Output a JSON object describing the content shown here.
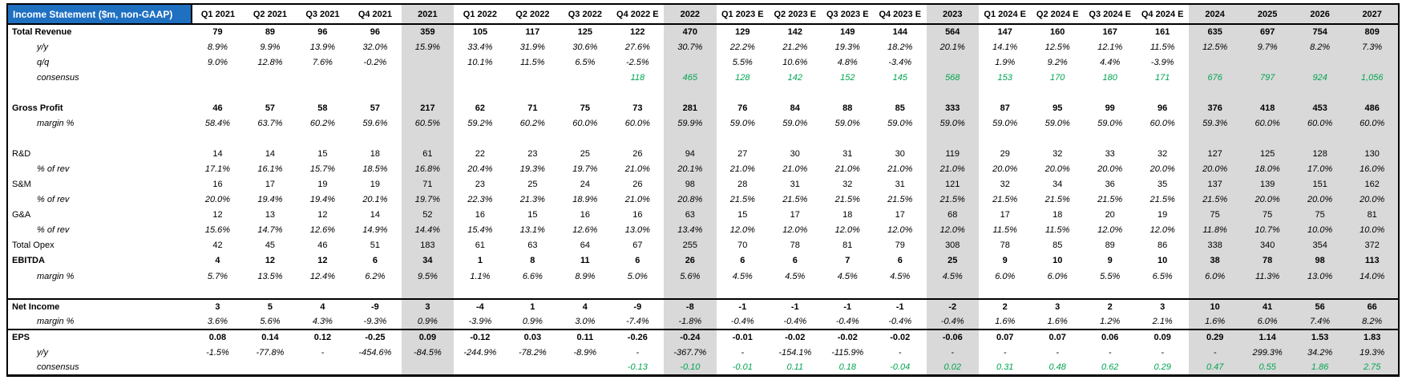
{
  "title": "Income Statement ($m, non-GAAP)",
  "colors": {
    "header_blue": "#1F70C1",
    "annual_bg": "#D9D9D9",
    "consensus_green": "#00A550",
    "border": "#000000"
  },
  "columns": [
    {
      "label": "Q1 2021",
      "annual": false
    },
    {
      "label": "Q2 2021",
      "annual": false
    },
    {
      "label": "Q3 2021",
      "annual": false
    },
    {
      "label": "Q4 2021",
      "annual": false
    },
    {
      "label": "2021",
      "annual": true
    },
    {
      "label": "Q1 2022",
      "annual": false
    },
    {
      "label": "Q2 2022",
      "annual": false
    },
    {
      "label": "Q3 2022",
      "annual": false
    },
    {
      "label": "Q4 2022 E",
      "annual": false
    },
    {
      "label": "2022",
      "annual": true
    },
    {
      "label": "Q1 2023 E",
      "annual": false
    },
    {
      "label": "Q2 2023 E",
      "annual": false
    },
    {
      "label": "Q3 2023 E",
      "annual": false
    },
    {
      "label": "Q4 2023 E",
      "annual": false
    },
    {
      "label": "2023",
      "annual": true
    },
    {
      "label": "Q1 2024 E",
      "annual": false
    },
    {
      "label": "Q2 2024 E",
      "annual": false
    },
    {
      "label": "Q3 2024 E",
      "annual": false
    },
    {
      "label": "Q4 2024 E",
      "annual": false
    },
    {
      "label": "2024",
      "annual": true
    },
    {
      "label": "2025",
      "annual": true
    },
    {
      "label": "2026",
      "annual": true
    },
    {
      "label": "2027",
      "annual": true
    }
  ],
  "rows": [
    {
      "name": "total-revenue",
      "label": "Total Revenue",
      "cls": "bold",
      "values": [
        "79",
        "89",
        "96",
        "96",
        "359",
        "105",
        "117",
        "125",
        "122",
        "470",
        "129",
        "142",
        "149",
        "144",
        "564",
        "147",
        "160",
        "167",
        "161",
        "635",
        "697",
        "754",
        "809"
      ]
    },
    {
      "name": "revenue-yoy",
      "label": "y/y",
      "cls": "italic",
      "indent": true,
      "values": [
        "8.9%",
        "9.9%",
        "13.9%",
        "32.0%",
        "15.9%",
        "33.4%",
        "31.9%",
        "30.6%",
        "27.6%",
        "30.7%",
        "22.2%",
        "21.2%",
        "19.3%",
        "18.2%",
        "20.1%",
        "14.1%",
        "12.5%",
        "12.1%",
        "11.5%",
        "12.5%",
        "9.7%",
        "8.2%",
        "7.3%"
      ]
    },
    {
      "name": "revenue-qoq",
      "label": "q/q",
      "cls": "italic",
      "indent": true,
      "values": [
        "9.0%",
        "12.8%",
        "7.6%",
        "-0.2%",
        "",
        "10.1%",
        "11.5%",
        "6.5%",
        "-2.5%",
        "",
        "5.5%",
        "10.6%",
        "4.8%",
        "-3.4%",
        "",
        "1.9%",
        "9.2%",
        "4.4%",
        "-3.9%",
        "",
        "",
        "",
        ""
      ]
    },
    {
      "name": "revenue-consensus",
      "label": "consensus",
      "cls": "italic",
      "indent": true,
      "green": true,
      "values": [
        "",
        "",
        "",
        "",
        "",
        "",
        "",
        "",
        "118",
        "465",
        "128",
        "142",
        "152",
        "145",
        "568",
        "153",
        "170",
        "180",
        "171",
        "676",
        "797",
        "924",
        "1,056"
      ]
    },
    {
      "name": "spacer-1",
      "label": "",
      "cls": "blank",
      "values": [
        "",
        "",
        "",
        "",
        "",
        "",
        "",
        "",
        "",
        "",
        "",
        "",
        "",
        "",
        "",
        "",
        "",
        "",
        "",
        "",
        "",
        "",
        ""
      ]
    },
    {
      "name": "gross-profit",
      "label": "Gross Profit",
      "cls": "bold",
      "values": [
        "46",
        "57",
        "58",
        "57",
        "217",
        "62",
        "71",
        "75",
        "73",
        "281",
        "76",
        "84",
        "88",
        "85",
        "333",
        "87",
        "95",
        "99",
        "96",
        "376",
        "418",
        "453",
        "486"
      ]
    },
    {
      "name": "gross-margin",
      "label": "margin %",
      "cls": "italic",
      "indent": true,
      "values": [
        "58.4%",
        "63.7%",
        "60.2%",
        "59.6%",
        "60.5%",
        "59.2%",
        "60.2%",
        "60.0%",
        "60.0%",
        "59.9%",
        "59.0%",
        "59.0%",
        "59.0%",
        "59.0%",
        "59.0%",
        "59.0%",
        "59.0%",
        "59.0%",
        "60.0%",
        "59.3%",
        "60.0%",
        "60.0%",
        "60.0%"
      ]
    },
    {
      "name": "spacer-2",
      "label": "",
      "cls": "blank",
      "values": [
        "",
        "",
        "",
        "",
        "",
        "",
        "",
        "",
        "",
        "",
        "",
        "",
        "",
        "",
        "",
        "",
        "",
        "",
        "",
        "",
        "",
        "",
        ""
      ]
    },
    {
      "name": "rd",
      "label": "R&D",
      "cls": "normal",
      "values": [
        "14",
        "14",
        "15",
        "18",
        "61",
        "22",
        "23",
        "25",
        "26",
        "94",
        "27",
        "30",
        "31",
        "30",
        "119",
        "29",
        "32",
        "33",
        "32",
        "127",
        "125",
        "128",
        "130"
      ]
    },
    {
      "name": "rd-pct-rev",
      "label": "% of rev",
      "cls": "italic",
      "indent": true,
      "values": [
        "17.1%",
        "16.1%",
        "15.7%",
        "18.5%",
        "16.8%",
        "20.4%",
        "19.3%",
        "19.7%",
        "21.0%",
        "20.1%",
        "21.0%",
        "21.0%",
        "21.0%",
        "21.0%",
        "21.0%",
        "20.0%",
        "20.0%",
        "20.0%",
        "20.0%",
        "20.0%",
        "18.0%",
        "17.0%",
        "16.0%"
      ]
    },
    {
      "name": "sm",
      "label": "S&M",
      "cls": "normal",
      "values": [
        "16",
        "17",
        "19",
        "19",
        "71",
        "23",
        "25",
        "24",
        "26",
        "98",
        "28",
        "31",
        "32",
        "31",
        "121",
        "32",
        "34",
        "36",
        "35",
        "137",
        "139",
        "151",
        "162"
      ]
    },
    {
      "name": "sm-pct-rev",
      "label": "% of rev",
      "cls": "italic",
      "indent": true,
      "values": [
        "20.0%",
        "19.4%",
        "19.4%",
        "20.1%",
        "19.7%",
        "22.3%",
        "21.3%",
        "18.9%",
        "21.0%",
        "20.8%",
        "21.5%",
        "21.5%",
        "21.5%",
        "21.5%",
        "21.5%",
        "21.5%",
        "21.5%",
        "21.5%",
        "21.5%",
        "21.5%",
        "20.0%",
        "20.0%",
        "20.0%"
      ]
    },
    {
      "name": "ga",
      "label": "G&A",
      "cls": "normal",
      "values": [
        "12",
        "13",
        "12",
        "14",
        "52",
        "16",
        "15",
        "16",
        "16",
        "63",
        "15",
        "17",
        "18",
        "17",
        "68",
        "17",
        "18",
        "20",
        "19",
        "75",
        "75",
        "75",
        "81"
      ]
    },
    {
      "name": "ga-pct-rev",
      "label": "% of rev",
      "cls": "italic",
      "indent": true,
      "values": [
        "15.6%",
        "14.7%",
        "12.6%",
        "14.9%",
        "14.4%",
        "15.4%",
        "13.1%",
        "12.6%",
        "13.0%",
        "13.4%",
        "12.0%",
        "12.0%",
        "12.0%",
        "12.0%",
        "12.0%",
        "11.5%",
        "11.5%",
        "12.0%",
        "12.0%",
        "11.8%",
        "10.7%",
        "10.0%",
        "10.0%"
      ]
    },
    {
      "name": "total-opex",
      "label": "Total Opex",
      "cls": "normal",
      "values": [
        "42",
        "45",
        "46",
        "51",
        "183",
        "61",
        "63",
        "64",
        "67",
        "255",
        "70",
        "78",
        "81",
        "79",
        "308",
        "78",
        "85",
        "89",
        "86",
        "338",
        "340",
        "354",
        "372"
      ]
    },
    {
      "name": "ebitda",
      "label": "EBITDA",
      "cls": "bold",
      "values": [
        "4",
        "12",
        "12",
        "6",
        "34",
        "1",
        "8",
        "11",
        "6",
        "26",
        "6",
        "6",
        "7",
        "6",
        "25",
        "9",
        "10",
        "9",
        "10",
        "38",
        "78",
        "98",
        "113"
      ]
    },
    {
      "name": "ebitda-margin",
      "label": "margin %",
      "cls": "italic",
      "indent": true,
      "values": [
        "5.7%",
        "13.5%",
        "12.4%",
        "6.2%",
        "9.5%",
        "1.1%",
        "6.6%",
        "8.9%",
        "5.0%",
        "5.6%",
        "4.5%",
        "4.5%",
        "4.5%",
        "4.5%",
        "4.5%",
        "6.0%",
        "6.0%",
        "5.5%",
        "6.5%",
        "6.0%",
        "11.3%",
        "13.0%",
        "14.0%"
      ]
    },
    {
      "name": "spacer-3",
      "label": "",
      "cls": "blank",
      "values": [
        "",
        "",
        "",
        "",
        "",
        "",
        "",
        "",
        "",
        "",
        "",
        "",
        "",
        "",
        "",
        "",
        "",
        "",
        "",
        "",
        "",
        "",
        ""
      ]
    },
    {
      "name": "net-income",
      "label": "Net Income",
      "cls": "bold",
      "border_top": true,
      "values": [
        "3",
        "5",
        "4",
        "-9",
        "3",
        "-4",
        "1",
        "4",
        "-9",
        "-8",
        "-1",
        "-1",
        "-1",
        "-1",
        "-2",
        "2",
        "3",
        "2",
        "3",
        "10",
        "41",
        "56",
        "66"
      ]
    },
    {
      "name": "net-income-margin",
      "label": "margin %",
      "cls": "italic",
      "indent": true,
      "values": [
        "3.6%",
        "5.6%",
        "4.3%",
        "-9.3%",
        "0.9%",
        "-3.9%",
        "0.9%",
        "3.0%",
        "-7.4%",
        "-1.8%",
        "-0.4%",
        "-0.4%",
        "-0.4%",
        "-0.4%",
        "-0.4%",
        "1.6%",
        "1.6%",
        "1.2%",
        "2.1%",
        "1.6%",
        "6.0%",
        "7.4%",
        "8.2%"
      ]
    },
    {
      "name": "eps",
      "label": "EPS",
      "cls": "bold",
      "border_top": true,
      "values": [
        "0.08",
        "0.14",
        "0.12",
        "-0.25",
        "0.09",
        "-0.12",
        "0.03",
        "0.11",
        "-0.26",
        "-0.24",
        "-0.01",
        "-0.02",
        "-0.02",
        "-0.02",
        "-0.06",
        "0.07",
        "0.07",
        "0.06",
        "0.09",
        "0.29",
        "1.14",
        "1.53",
        "1.83"
      ]
    },
    {
      "name": "eps-yoy",
      "label": "y/y",
      "cls": "italic",
      "indent": true,
      "values": [
        "-1.5%",
        "-77.8%",
        "-",
        "-454.6%",
        "-84.5%",
        "-244.9%",
        "-78.2%",
        "-8.9%",
        "-",
        "-367.7%",
        "-",
        "-154.1%",
        "-115.9%",
        "-",
        "-",
        "-",
        "-",
        "-",
        "-",
        "-",
        "299.3%",
        "34.2%",
        "19.3%"
      ]
    },
    {
      "name": "eps-consensus",
      "label": "consensus",
      "cls": "italic",
      "indent": true,
      "green": true,
      "values": [
        "",
        "",
        "",
        "",
        "",
        "",
        "",
        "",
        "-0.13",
        "-0.10",
        "-0.01",
        "0.11",
        "0.18",
        "-0.04",
        "0.02",
        "0.31",
        "0.48",
        "0.62",
        "0.29",
        "0.47",
        "0.55",
        "1.86",
        "2.75"
      ]
    }
  ]
}
